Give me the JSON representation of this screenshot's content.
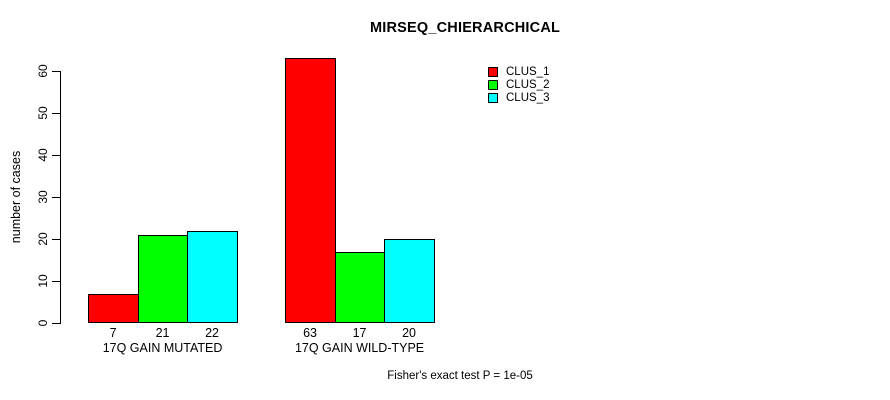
{
  "chart_data": {
    "type": "bar",
    "title": "MIRSEQ_CHIERARCHICAL",
    "ylabel": "number of cases",
    "xlabel": "",
    "ylim": [
      0,
      60
    ],
    "yticks": [
      0,
      10,
      20,
      30,
      40,
      50,
      60
    ],
    "grid": false,
    "categories": [
      "17Q GAIN MUTATED",
      "17Q GAIN WILD-TYPE"
    ],
    "series": [
      {
        "name": "CLUS_1",
        "color": "#FF0000",
        "values": [
          7,
          63
        ]
      },
      {
        "name": "CLUS_2",
        "color": "#00FF00",
        "values": [
          21,
          17
        ]
      },
      {
        "name": "CLUS_3",
        "color": "#00FFFF",
        "values": [
          22,
          20
        ]
      }
    ],
    "bar_value_labels": [
      [
        "7",
        "21",
        "22"
      ],
      [
        "63",
        "17",
        "20"
      ]
    ],
    "legend": {
      "position": "top-right",
      "entries": [
        "CLUS_1",
        "CLUS_2",
        "CLUS_3"
      ]
    },
    "annotation": "Fisher's exact test P = 1e-05",
    "colors": {
      "axis": "#000000",
      "background": "#FFFFFF",
      "bar_border": "#000000"
    }
  }
}
